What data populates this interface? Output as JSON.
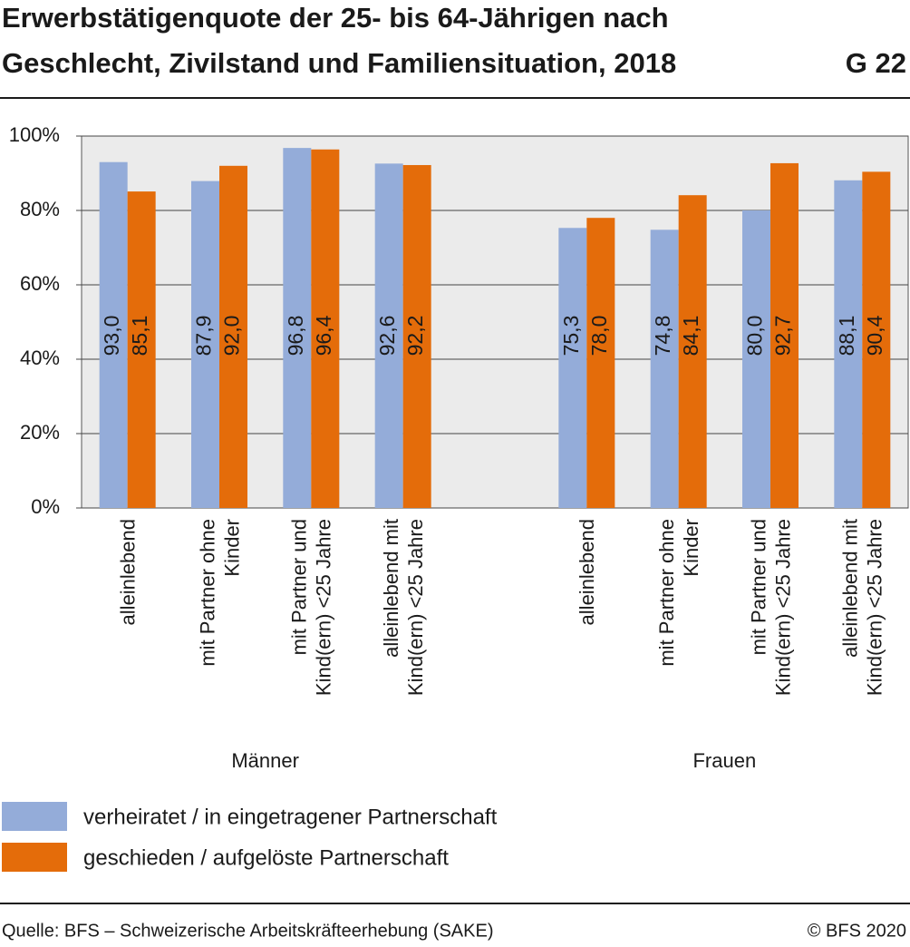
{
  "chart_data": {
    "type": "bar",
    "title": [
      "Erwerbstätigenquote der 25- bis 64-Jährigen nach",
      "Geschlecht, Zivilstand und Familiensituation, 2018"
    ],
    "chart_id": "G 22",
    "categories": [
      [
        "alleinlebend"
      ],
      [
        "mit Partner ohne",
        "Kinder"
      ],
      [
        "mit Partner und",
        "Kind(ern) <25 Jahre"
      ],
      [
        "alleinlebend mit",
        "Kind(ern) <25 Jahre"
      ],
      null,
      [
        "alleinlebend"
      ],
      [
        "mit Partner ohne",
        "Kinder"
      ],
      [
        "mit Partner und",
        "Kind(ern) <25 Jahre"
      ],
      [
        "alleinlebend mit",
        "Kind(ern) <25 Jahre"
      ]
    ],
    "group_labels": [
      "Männer",
      "Frauen"
    ],
    "series": [
      {
        "name": "verheiratet / in eingetragener Partnerschaft",
        "color": "#94acd9",
        "values": [
          93.0,
          87.9,
          96.8,
          92.6,
          null,
          75.3,
          74.8,
          80.0,
          88.1
        ],
        "value_labels": [
          "93,0",
          "87,9",
          "96,8",
          "92,6",
          null,
          "75,3",
          "74,8",
          "80,0",
          "88,1"
        ]
      },
      {
        "name": "geschieden / aufgelöste Partnerschaft",
        "color": "#e46c0a",
        "values": [
          85.1,
          92.0,
          96.4,
          92.2,
          null,
          78.0,
          84.1,
          92.7,
          90.4
        ],
        "value_labels": [
          "85,1",
          "92,0",
          "96,4",
          "92,2",
          null,
          "78,0",
          "84,1",
          "92,7",
          "90,4"
        ]
      }
    ],
    "ylim": [
      0,
      100
    ],
    "yticks": [
      {
        "value": 0,
        "label": "0%"
      },
      {
        "value": 20,
        "label": "20%"
      },
      {
        "value": 40,
        "label": "40%"
      },
      {
        "value": 60,
        "label": "60%"
      },
      {
        "value": 80,
        "label": "80%"
      },
      {
        "value": 100,
        "label": "100%"
      }
    ],
    "grid": true,
    "source": "Quelle: BFS – Schweizerische Arbeitskräfteerhebung (SAKE)",
    "copyright": "© BFS 2020"
  }
}
